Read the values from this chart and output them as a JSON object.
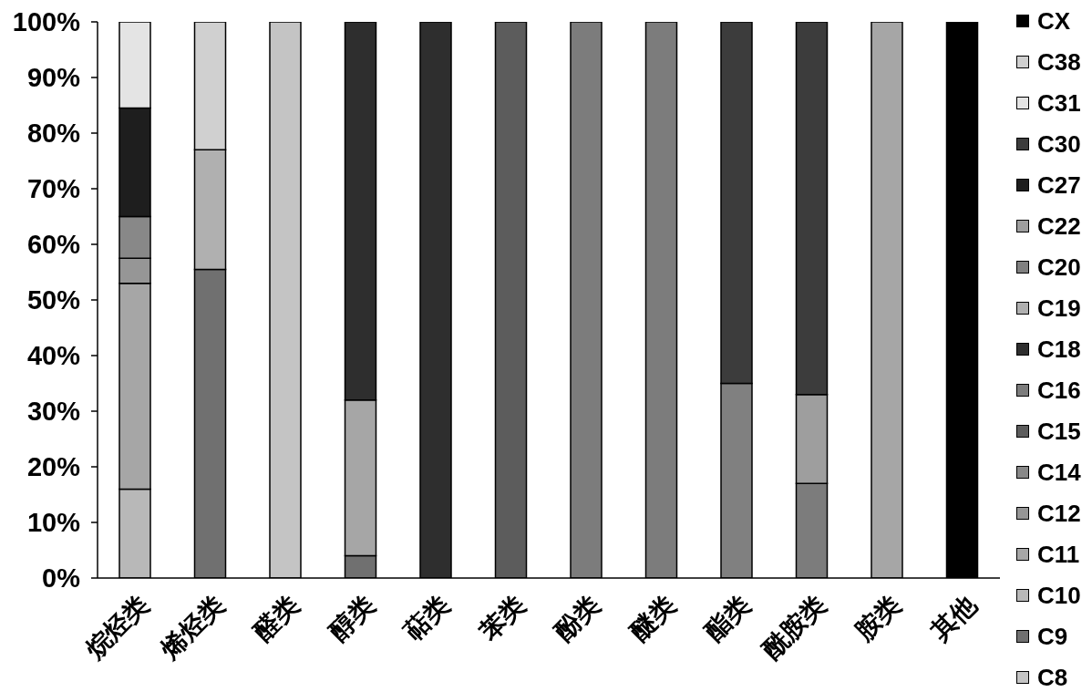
{
  "chart_data": {
    "type": "bar",
    "stacked": true,
    "categories": [
      "烷烃类",
      "烯烃类",
      "醛类",
      "醇类",
      "萜类",
      "苯类",
      "酚类",
      "醚类",
      "酯类",
      "酰胺类",
      "胺类",
      "其他"
    ],
    "series": [
      {
        "name": "C8",
        "color": "#c4c4c4",
        "values": [
          null,
          null,
          100,
          null,
          null,
          null,
          null,
          null,
          null,
          null,
          null,
          null
        ]
      },
      {
        "name": "C9",
        "color": "#707070",
        "values": [
          null,
          55.5,
          null,
          4,
          null,
          null,
          null,
          null,
          null,
          null,
          null,
          null
        ]
      },
      {
        "name": "C10",
        "color": "#b8b8b8",
        "values": [
          16,
          null,
          null,
          null,
          null,
          null,
          null,
          null,
          null,
          null,
          null,
          null
        ]
      },
      {
        "name": "C11",
        "color": "#a6a6a6",
        "values": [
          37,
          null,
          null,
          28,
          null,
          null,
          null,
          null,
          null,
          null,
          100,
          null
        ]
      },
      {
        "name": "C12",
        "color": "#969696",
        "values": [
          4.5,
          null,
          null,
          null,
          null,
          null,
          null,
          null,
          null,
          null,
          null,
          null
        ]
      },
      {
        "name": "C14",
        "color": "#888888",
        "values": [
          7.5,
          null,
          null,
          null,
          null,
          null,
          null,
          null,
          null,
          null,
          null,
          null
        ]
      },
      {
        "name": "C15",
        "color": "#5c5c5c",
        "values": [
          null,
          null,
          null,
          null,
          null,
          100,
          null,
          null,
          null,
          null,
          null,
          null
        ]
      },
      {
        "name": "C16",
        "color": "#7c7c7c",
        "values": [
          null,
          null,
          null,
          null,
          null,
          null,
          100,
          100,
          null,
          17,
          null,
          null
        ]
      },
      {
        "name": "C18",
        "color": "#2e2e2e",
        "values": [
          null,
          null,
          null,
          68,
          100,
          null,
          null,
          null,
          null,
          null,
          null,
          null
        ]
      },
      {
        "name": "C19",
        "color": "#b0b0b0",
        "values": [
          null,
          21.5,
          null,
          null,
          null,
          null,
          null,
          null,
          null,
          null,
          null,
          null
        ]
      },
      {
        "name": "C20",
        "color": "#808080",
        "values": [
          null,
          null,
          null,
          null,
          null,
          null,
          null,
          null,
          35,
          null,
          null,
          null
        ]
      },
      {
        "name": "C22",
        "color": "#9e9e9e",
        "values": [
          null,
          null,
          null,
          null,
          null,
          null,
          null,
          null,
          null,
          16,
          null,
          null
        ]
      },
      {
        "name": "C27",
        "color": "#1e1e1e",
        "values": [
          19.5,
          null,
          null,
          null,
          null,
          null,
          null,
          null,
          null,
          null,
          null,
          null
        ]
      },
      {
        "name": "C30",
        "color": "#3c3c3c",
        "values": [
          null,
          null,
          null,
          null,
          null,
          null,
          null,
          null,
          65,
          67,
          null,
          null
        ]
      },
      {
        "name": "C31",
        "color": "#e4e4e4",
        "values": [
          15.5,
          null,
          null,
          null,
          null,
          null,
          null,
          null,
          null,
          null,
          null,
          null
        ]
      },
      {
        "name": "C38",
        "color": "#d0d0d0",
        "values": [
          null,
          23,
          null,
          null,
          null,
          null,
          null,
          null,
          null,
          null,
          null,
          null
        ]
      },
      {
        "name": "CX",
        "color": "#000000",
        "values": [
          null,
          null,
          null,
          null,
          null,
          null,
          null,
          null,
          null,
          null,
          null,
          100
        ]
      }
    ],
    "ylim": [
      0,
      100
    ],
    "yticks": [
      {
        "value": 0,
        "label": "0%"
      },
      {
        "value": 10,
        "label": "10%"
      },
      {
        "value": 20,
        "label": "20%"
      },
      {
        "value": 30,
        "label": "30%"
      },
      {
        "value": 40,
        "label": "40%"
      },
      {
        "value": 50,
        "label": "50%"
      },
      {
        "value": 60,
        "label": "60%"
      },
      {
        "value": 70,
        "label": "70%"
      },
      {
        "value": 80,
        "label": "80%"
      },
      {
        "value": 90,
        "label": "90%"
      },
      {
        "value": 100,
        "label": "100%"
      }
    ],
    "legend": "right"
  }
}
